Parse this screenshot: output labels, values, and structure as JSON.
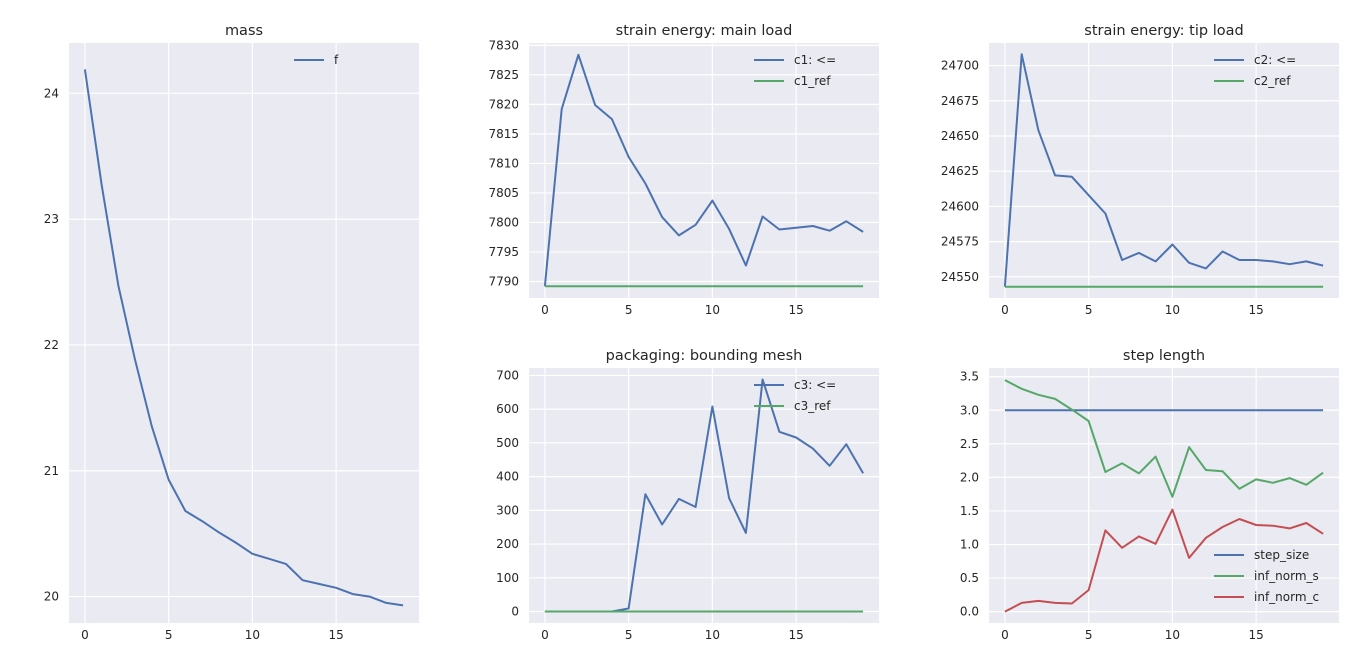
{
  "colors": {
    "blue": "#4c72b0",
    "green": "#55a868",
    "red": "#c44e52",
    "axes_bg": "#eaeaf2",
    "grid": "#ffffff"
  },
  "chart_data": [
    {
      "id": "mass",
      "type": "line",
      "title": "mass",
      "xlabel": "",
      "ylabel": "",
      "x": [
        0,
        1,
        2,
        3,
        4,
        5,
        6,
        7,
        8,
        9,
        10,
        11,
        12,
        13,
        14,
        15,
        16,
        17,
        18,
        19
      ],
      "series": [
        {
          "name": "f",
          "color": "#4c72b0",
          "values": [
            24.19,
            23.27,
            22.47,
            21.88,
            21.35,
            20.93,
            20.68,
            20.6,
            20.51,
            20.43,
            20.34,
            20.3,
            20.26,
            20.13,
            20.1,
            20.07,
            20.02,
            20.0,
            19.95,
            19.93
          ]
        }
      ],
      "xlim": [
        -0.95,
        19.95
      ],
      "ylim": [
        19.79,
        24.4
      ],
      "xticks": [
        0,
        5,
        10,
        15
      ],
      "xtick_labels": [
        "0",
        "5",
        "10",
        "15"
      ],
      "yticks": [
        20,
        21,
        22,
        23,
        24
      ],
      "ytick_labels": [
        "20",
        "21",
        "22",
        "23",
        "24"
      ],
      "grid": true,
      "legend": "top-right"
    },
    {
      "id": "main_load",
      "type": "line",
      "title": "strain energy: main load",
      "xlabel": "",
      "ylabel": "",
      "x": [
        0,
        1,
        2,
        3,
        4,
        5,
        6,
        7,
        8,
        9,
        10,
        11,
        12,
        13,
        14,
        15,
        16,
        17,
        18,
        19
      ],
      "series": [
        {
          "name": "c1: <=",
          "color": "#4c72b0",
          "values": [
            7789.2,
            7819.2,
            7828.4,
            7819.9,
            7817.5,
            7811.1,
            7806.6,
            7800.9,
            7797.8,
            7799.6,
            7803.7,
            7798.9,
            7792.7,
            7801.0,
            7798.8,
            7799.1,
            7799.4,
            7798.6,
            7800.2,
            7798.4
          ]
        },
        {
          "name": "c1_ref",
          "color": "#55a868",
          "values": [
            7789.2,
            7789.2,
            7789.2,
            7789.2,
            7789.2,
            7789.2,
            7789.2,
            7789.2,
            7789.2,
            7789.2,
            7789.2,
            7789.2,
            7789.2,
            7789.2,
            7789.2,
            7789.2,
            7789.2,
            7789.2,
            7789.2,
            7789.2
          ]
        }
      ],
      "xlim": [
        -0.95,
        19.95
      ],
      "ylim": [
        7787.2,
        7830.4
      ],
      "xticks": [
        0,
        5,
        10,
        15
      ],
      "xtick_labels": [
        "0",
        "5",
        "10",
        "15"
      ],
      "yticks": [
        7790,
        7795,
        7800,
        7805,
        7810,
        7815,
        7820,
        7825,
        7830
      ],
      "ytick_labels": [
        "7790",
        "7795",
        "7800",
        "7805",
        "7810",
        "7815",
        "7820",
        "7825",
        "7830"
      ],
      "grid": true,
      "legend": "top-right"
    },
    {
      "id": "tip_load",
      "type": "line",
      "title": "strain energy: tip load",
      "xlabel": "",
      "ylabel": "",
      "x": [
        0,
        1,
        2,
        3,
        4,
        5,
        6,
        7,
        8,
        9,
        10,
        11,
        12,
        13,
        14,
        15,
        16,
        17,
        18,
        19
      ],
      "series": [
        {
          "name": "c2: <=",
          "color": "#4c72b0",
          "values": [
            24543,
            24708,
            24654,
            24622,
            24621,
            24608,
            24595,
            24562,
            24567,
            24561,
            24573,
            24560,
            24556,
            24568,
            24562,
            24562,
            24561,
            24559,
            24561,
            24558
          ]
        },
        {
          "name": "c2_ref",
          "color": "#55a868",
          "values": [
            24543,
            24543,
            24543,
            24543,
            24543,
            24543,
            24543,
            24543,
            24543,
            24543,
            24543,
            24543,
            24543,
            24543,
            24543,
            24543,
            24543,
            24543,
            24543,
            24543
          ]
        }
      ],
      "xlim": [
        -0.95,
        19.95
      ],
      "ylim": [
        24535,
        24716
      ],
      "xticks": [
        0,
        5,
        10,
        15
      ],
      "xtick_labels": [
        "0",
        "5",
        "10",
        "15"
      ],
      "yticks": [
        24550,
        24575,
        24600,
        24625,
        24650,
        24675,
        24700
      ],
      "ytick_labels": [
        "24550",
        "24575",
        "24600",
        "24625",
        "24650",
        "24675",
        "24700"
      ],
      "grid": true,
      "legend": "top-right"
    },
    {
      "id": "packaging",
      "type": "line",
      "title": "packaging: bounding mesh",
      "xlabel": "",
      "ylabel": "",
      "x": [
        0,
        1,
        2,
        3,
        4,
        5,
        6,
        7,
        8,
        9,
        10,
        11,
        12,
        13,
        14,
        15,
        16,
        17,
        18,
        19
      ],
      "series": [
        {
          "name": "c3: <=",
          "color": "#4c72b0",
          "values": [
            0,
            0,
            0,
            0,
            0,
            9,
            348,
            258,
            334,
            310,
            608,
            336,
            233,
            688,
            533,
            516,
            483,
            432,
            496,
            410
          ]
        },
        {
          "name": "c3_ref",
          "color": "#55a868",
          "values": [
            0,
            0,
            0,
            0,
            0,
            0,
            0,
            0,
            0,
            0,
            0,
            0,
            0,
            0,
            0,
            0,
            0,
            0,
            0,
            0
          ]
        }
      ],
      "xlim": [
        -0.95,
        19.95
      ],
      "ylim": [
        -34,
        722
      ],
      "xticks": [
        0,
        5,
        10,
        15
      ],
      "xtick_labels": [
        "0",
        "5",
        "10",
        "15"
      ],
      "yticks": [
        0,
        100,
        200,
        300,
        400,
        500,
        600,
        700
      ],
      "ytick_labels": [
        "0",
        "100",
        "200",
        "300",
        "400",
        "500",
        "600",
        "700"
      ],
      "grid": true,
      "legend": "top-right"
    },
    {
      "id": "step_length",
      "type": "line",
      "title": "step length",
      "xlabel": "",
      "ylabel": "",
      "x": [
        0,
        1,
        2,
        3,
        4,
        5,
        6,
        7,
        8,
        9,
        10,
        11,
        12,
        13,
        14,
        15,
        16,
        17,
        18,
        19
      ],
      "series": [
        {
          "name": "step_size",
          "color": "#4c72b0",
          "values": [
            3,
            3,
            3,
            3,
            3,
            3,
            3,
            3,
            3,
            3,
            3,
            3,
            3,
            3,
            3,
            3,
            3,
            3,
            3,
            3
          ]
        },
        {
          "name": "inf_norm_s",
          "color": "#55a868",
          "values": [
            3.45,
            3.32,
            3.23,
            3.17,
            3.01,
            2.84,
            2.08,
            2.21,
            2.06,
            2.31,
            1.71,
            2.45,
            2.11,
            2.09,
            1.83,
            1.97,
            1.92,
            1.99,
            1.89,
            2.07
          ]
        },
        {
          "name": "inf_norm_c",
          "color": "#c44e52",
          "values": [
            0.0,
            0.13,
            0.16,
            0.13,
            0.12,
            0.32,
            1.21,
            0.95,
            1.12,
            1.01,
            1.52,
            0.8,
            1.1,
            1.26,
            1.38,
            1.29,
            1.28,
            1.24,
            1.32,
            1.16
          ]
        }
      ],
      "xlim": [
        -0.95,
        19.95
      ],
      "ylim": [
        -0.17,
        3.63
      ],
      "xticks": [
        0,
        5,
        10,
        15
      ],
      "xtick_labels": [
        "0",
        "5",
        "10",
        "15"
      ],
      "yticks": [
        0,
        0.5,
        1,
        1.5,
        2,
        2.5,
        3,
        3.5
      ],
      "ytick_labels": [
        "0.0",
        "0.5",
        "1.0",
        "1.5",
        "2.0",
        "2.5",
        "3.0",
        "3.5"
      ],
      "grid": true,
      "legend": "bottom-right"
    }
  ]
}
